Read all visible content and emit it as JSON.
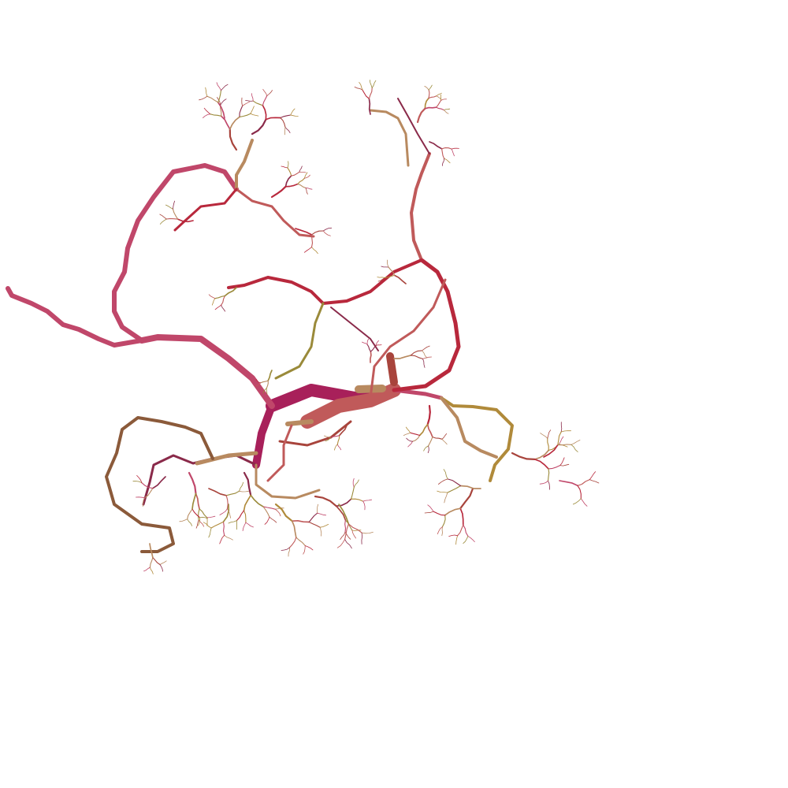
{
  "image": {
    "subject": "branching-vascular-tree",
    "background": "#ffffff",
    "palette": {
      "crimson": "#a8205a",
      "rose": "#c0476a",
      "coral": "#c05a5a",
      "brick": "#a8443c",
      "umber": "#8b5a3a",
      "ochre": "#b08a3a",
      "olive": "#9a8a3a",
      "tan": "#b88a60",
      "wine": "#8a2a4a",
      "red": "#b8283c"
    }
  }
}
